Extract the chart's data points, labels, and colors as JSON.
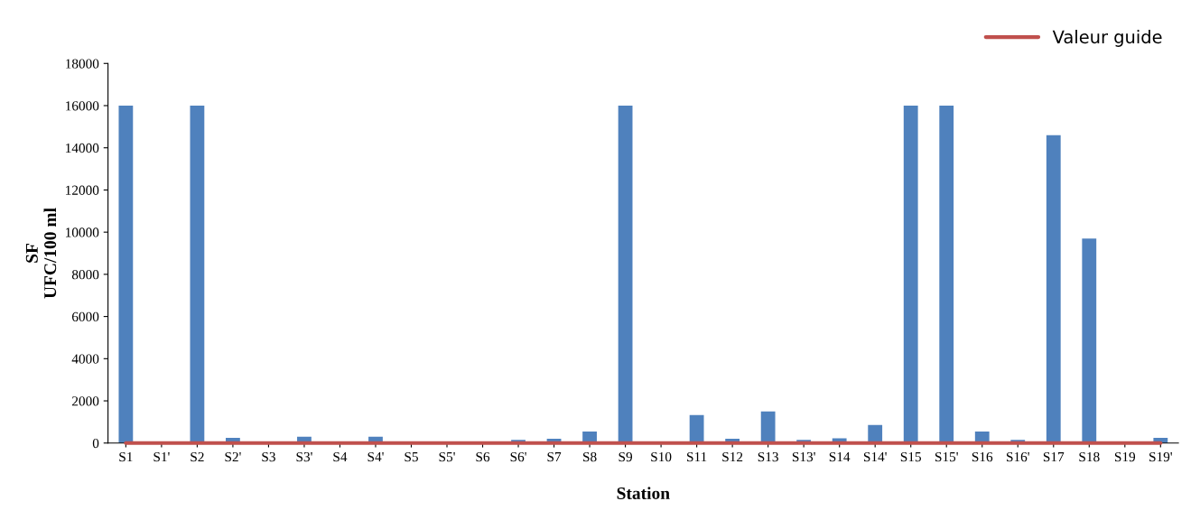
{
  "chart_data": {
    "type": "bar",
    "xlabel": "Station",
    "ylabel": "SF\nUFC/100 ml",
    "categories": [
      "S1",
      "S1'",
      "S2",
      "S2'",
      "S3",
      "S3'",
      "S4",
      "S4'",
      "S5",
      "S5'",
      "S6",
      "S6'",
      "S7",
      "S8",
      "S9",
      "S10",
      "S11",
      "S12",
      "S13",
      "S13'",
      "S14",
      "S14'",
      "S15",
      "S15'",
      "S16",
      "S16'",
      "S17",
      "S18",
      "S19",
      "S19'"
    ],
    "series": [
      {
        "color": "#4f81bd",
        "values": [
          16000,
          0,
          16000,
          250,
          0,
          300,
          0,
          300,
          0,
          0,
          0,
          150,
          200,
          550,
          16000,
          0,
          1330,
          200,
          1500,
          150,
          230,
          860,
          16000,
          16000,
          550,
          150,
          14600,
          9700,
          0,
          250
        ]
      },
      {
        "name": "Valeur guide",
        "type": "line",
        "color": "#c0504d",
        "values": [
          0,
          0,
          0,
          0,
          0,
          0,
          0,
          0,
          0,
          0,
          0,
          0,
          0,
          0,
          0,
          0,
          0,
          0,
          0,
          0,
          0,
          0,
          0,
          0,
          0,
          0,
          0,
          0,
          0,
          0
        ]
      }
    ],
    "ylim": [
      0,
      18000
    ],
    "yticks": [
      0,
      2000,
      4000,
      6000,
      8000,
      10000,
      12000,
      14000,
      16000,
      18000
    ],
    "grid": false,
    "legend": "top right"
  }
}
